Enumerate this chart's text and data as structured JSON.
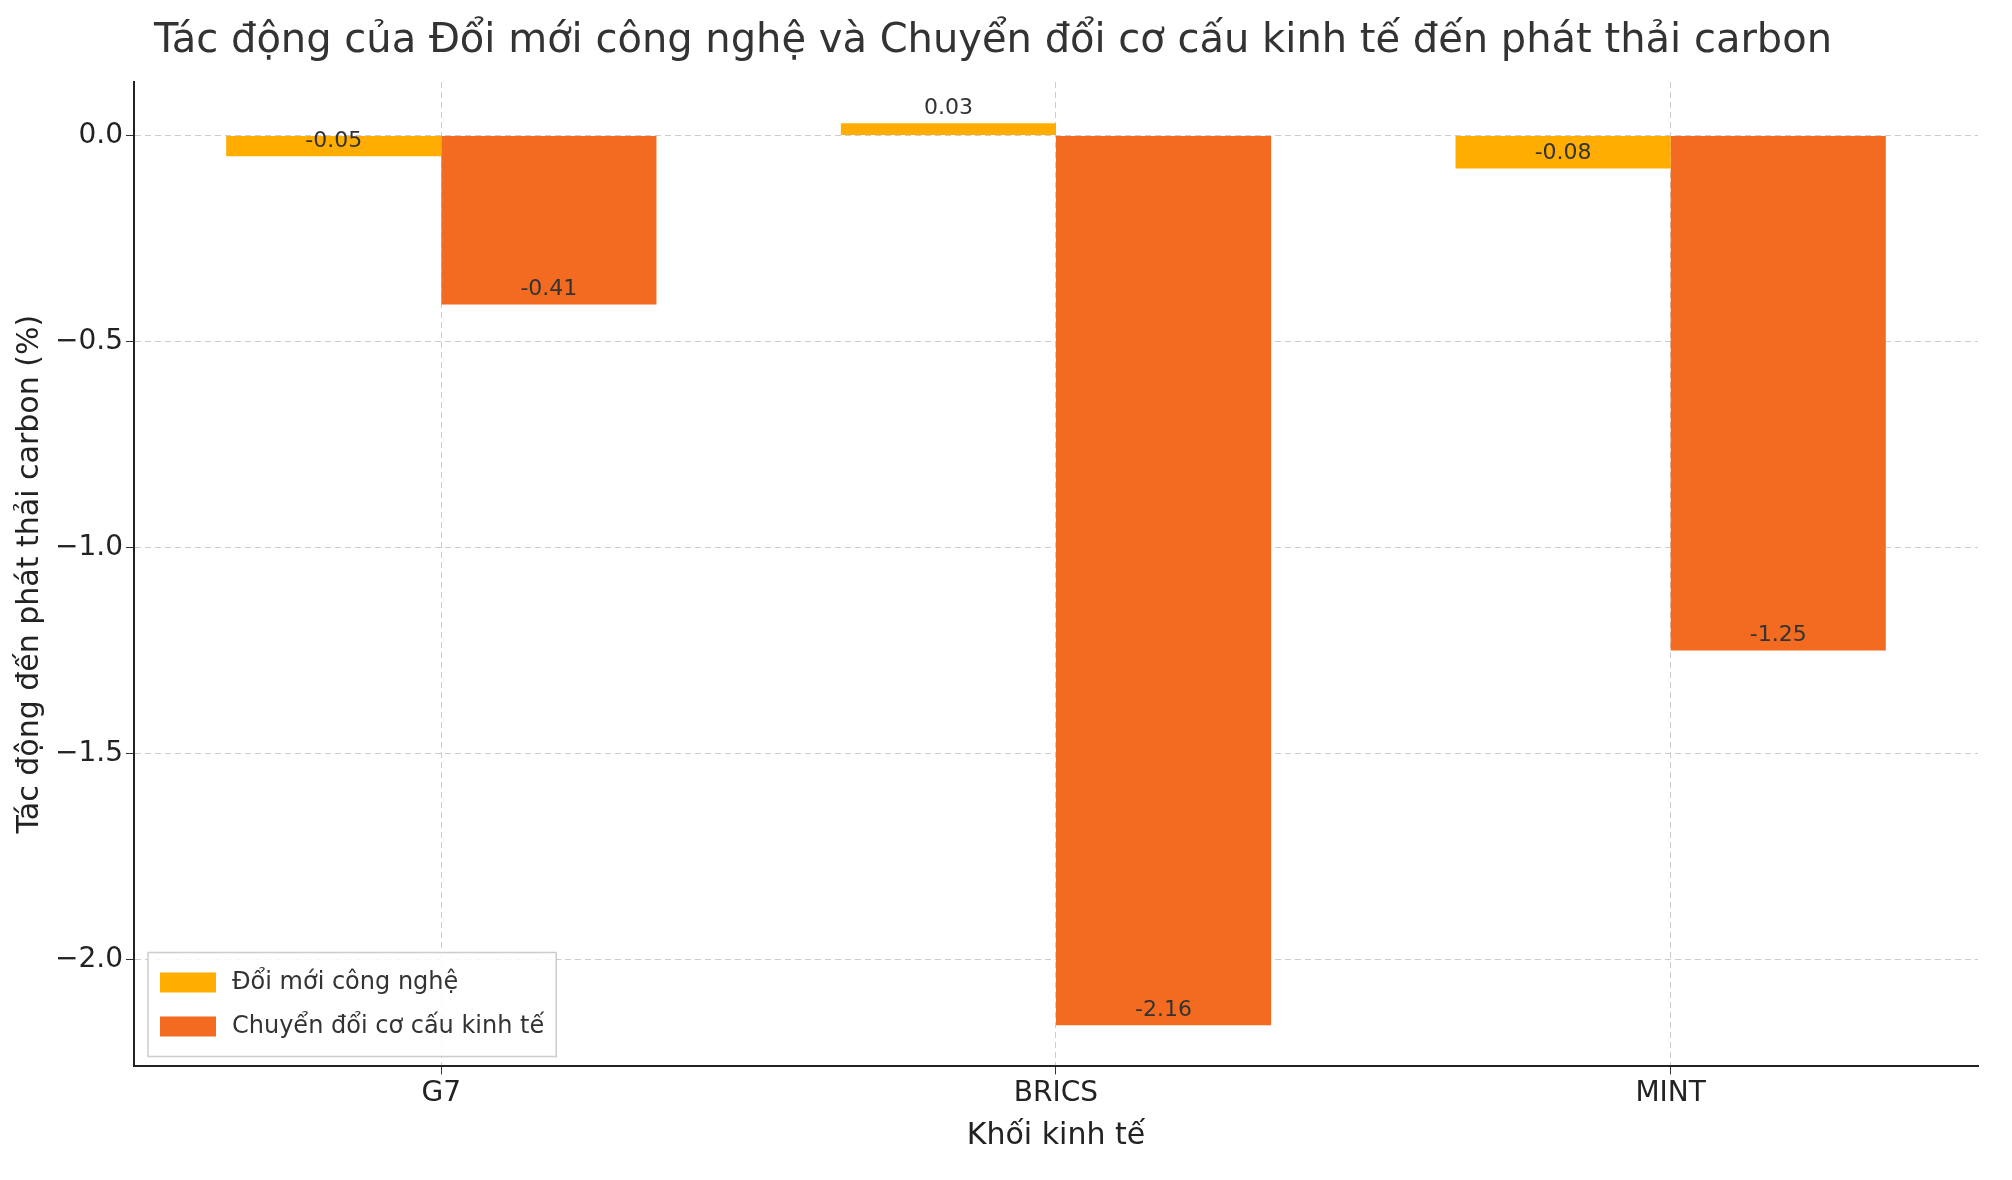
{
  "chart_data": {
    "type": "bar",
    "title": "Tác động của Đổi mới công nghệ và Chuyển đổi cơ cấu kinh tế đến phát thải carbon",
    "xlabel": "Khối kinh tế",
    "ylabel": "Tác động đến phát thải carbon (%)",
    "categories": [
      "G7",
      "BRICS",
      "MINT"
    ],
    "series": [
      {
        "name": "Đổi mới công nghệ",
        "color": "#ffad00",
        "values": [
          -0.05,
          0.03,
          -0.08
        ]
      },
      {
        "name": "Chuyển đổi cơ cấu kinh tế",
        "color": "#f26b21",
        "values": [
          -0.41,
          -2.16,
          -1.25
        ]
      }
    ],
    "ylim": [
      -2.26,
      0.13
    ],
    "yticks": [
      {
        "value": 0,
        "label": "0.0"
      },
      {
        "value": -0.5,
        "label": "−0.5"
      },
      {
        "value": -1,
        "label": "−1.0"
      },
      {
        "value": -1.5,
        "label": "−1.5"
      },
      {
        "value": -2,
        "label": "−2.0"
      }
    ],
    "data_labels": true,
    "grid": true,
    "legend": "bottom left"
  }
}
